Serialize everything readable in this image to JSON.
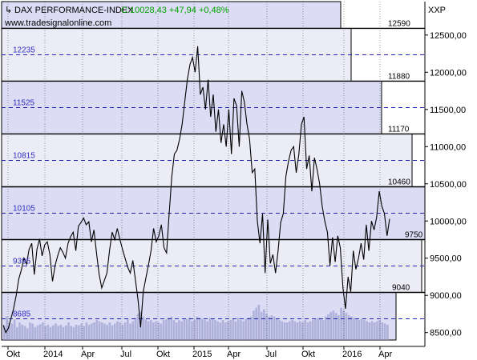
{
  "header": {
    "instrument": "DAX PERFORMANCE-INDEX",
    "quote": "C:10028,43 +47,94 +0,48%",
    "website": "www.tradesignalonline.com",
    "exchange_code": "XXP"
  },
  "colors": {
    "price": "#000000",
    "zone_fill": "#dcdcf4",
    "zone_fill_alt": "#ececf7",
    "zone_label": "#3030c0",
    "dashed": "#2020b0",
    "volume": "#9aa0d0",
    "quote_text": "#00a000"
  },
  "chart_data": {
    "type": "line",
    "title": "DAX PERFORMANCE-INDEX",
    "ylim": [
      8400,
      12950
    ],
    "y_ticks": [
      8500,
      9000,
      9500,
      10000,
      10500,
      11000,
      11500,
      12000,
      12500
    ],
    "y_tick_labels": [
      "8500,00",
      "9000,00",
      "9500,00",
      "10000,00",
      "10500,00",
      "11000,00",
      "11500,00",
      "12000,00",
      "12500,00"
    ],
    "x_ticks": [
      "Okt",
      "2014",
      "Apr",
      "Jul",
      "Okt",
      "2015",
      "Apr",
      "Jul",
      "Okt",
      "2016",
      "Apr"
    ],
    "zone_boundaries": [
      12590,
      11880,
      11170,
      10460,
      9750,
      9040
    ],
    "midlines": [
      12235,
      11525,
      10815,
      10105,
      9395,
      8685
    ],
    "last_close": 10028.43,
    "series": [
      {
        "values": [
          8600,
          8500,
          8560,
          8690,
          8820,
          9000,
          9220,
          9340,
          9500,
          9420,
          9620,
          9700,
          9280,
          9620,
          9760,
          9530,
          9680,
          9720,
          9550,
          9190,
          9400,
          9530,
          9640,
          9580,
          9500,
          9700,
          9790,
          9850,
          9600,
          9930,
          9980,
          10040,
          9950,
          9990,
          9720,
          9880,
          9560,
          9280,
          9100,
          9200,
          9300,
          9600,
          9850,
          9750,
          9900,
          9750,
          9620,
          9500,
          9380,
          9300,
          9470,
          9200,
          8940,
          8570,
          9050,
          9230,
          9410,
          9600,
          9900,
          9720,
          9800,
          9950,
          9640,
          9570,
          10100,
          10600,
          10900,
          10950,
          11100,
          11300,
          11600,
          11900,
          12100,
          12200,
          12000,
          12350,
          11700,
          11800,
          11500,
          11900,
          11400,
          11700,
          11200,
          11500,
          11050,
          11300,
          11000,
          11500,
          10900,
          11650,
          11550,
          11000,
          11750,
          11600,
          11300,
          11100,
          10650,
          10700,
          10000,
          9700,
          10100,
          9300,
          10020,
          9430,
          9550,
          9300,
          9600,
          9980,
          10100,
          10600,
          10800,
          10950,
          11000,
          10650,
          10900,
          11300,
          11400,
          10700,
          10880,
          10400,
          10850,
          10700,
          10500,
          10200,
          10000,
          9850,
          9400,
          9780,
          9450,
          9800,
          9640,
          9100,
          8820,
          9250,
          9050,
          9600,
          9350,
          9500,
          9700,
          9480,
          9950,
          9600,
          10000,
          9880,
          10050,
          10400,
          10200,
          10100,
          9800,
          10028
        ]
      }
    ],
    "volume": [
      25,
      40,
      30,
      28,
      35,
      22,
      30,
      26,
      24,
      20,
      30,
      28,
      22,
      25,
      27,
      30,
      24,
      26,
      22,
      25,
      28,
      24,
      26,
      22,
      25,
      30,
      24,
      22,
      26,
      25,
      28,
      24,
      30,
      26,
      28,
      30,
      34,
      32,
      30,
      28,
      26,
      30,
      25,
      28,
      32,
      30,
      26,
      30,
      35,
      28,
      32,
      38,
      45,
      48,
      40,
      35,
      32,
      34,
      30,
      32,
      30,
      28,
      34,
      35,
      38,
      40,
      34,
      30,
      34,
      32,
      35,
      36,
      38,
      32,
      35,
      40,
      38,
      36,
      34,
      32,
      38,
      36,
      34,
      32,
      30,
      34,
      30,
      32,
      34,
      36,
      32,
      38,
      34,
      32,
      36,
      38,
      40,
      50,
      55,
      60,
      48,
      52,
      45,
      40,
      42,
      40,
      36,
      34,
      32,
      30,
      30,
      32,
      34,
      32,
      30,
      32,
      30,
      34,
      30,
      32,
      34,
      36,
      38,
      36,
      34,
      40,
      44,
      48,
      50,
      46,
      42,
      55,
      50,
      46,
      42,
      40,
      38,
      36,
      34,
      36,
      34,
      32,
      30,
      32,
      30,
      32,
      34,
      30,
      28,
      26
    ]
  }
}
